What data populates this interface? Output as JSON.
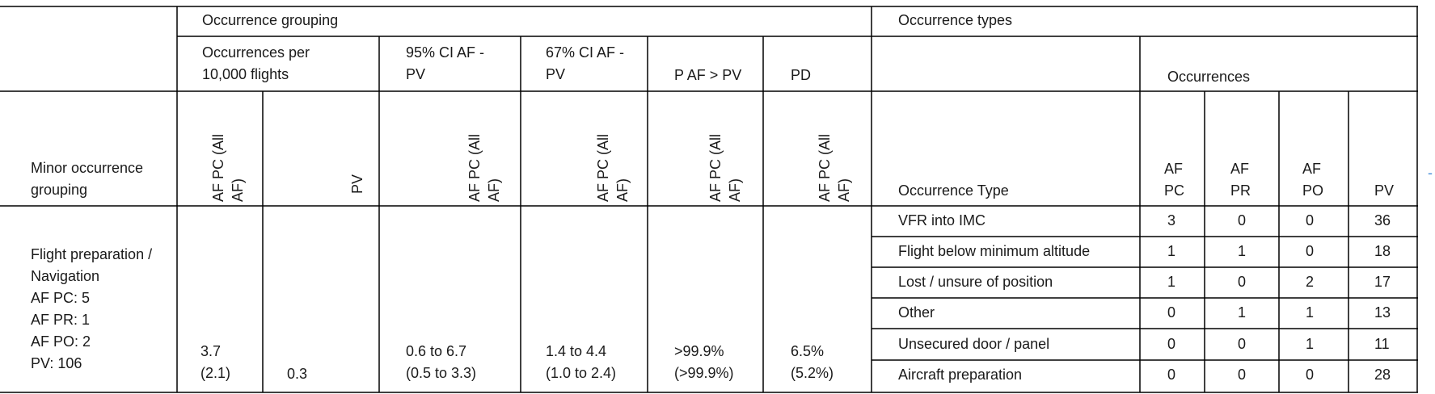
{
  "header": {
    "occurrence_grouping": "Occurrence grouping",
    "occurrence_types": "Occurrence types",
    "per_10000": "Occurrences per\n10,000 flights",
    "ci95": "95% CI AF -\nPV",
    "ci67": "67% CI AF -\nPV",
    "p_af_pv": "P AF > PV",
    "pd": "PD",
    "occurrences": "Occurrences",
    "minor_grouping": "Minor occurrence\ngrouping",
    "af_pc_all": "AF PC (All\nAF)",
    "pv": "PV",
    "occurrence_type": "Occurrence Type",
    "af_pc": "AF\nPC",
    "af_pr": "AF\nPR",
    "af_po": "AF\nPO",
    "pv_col": "PV"
  },
  "group": {
    "name": "Flight preparation /\nNavigation\nAF PC: 5\nAF PR: 1\nAF PO: 2\nPV: 106",
    "rate_af": "3.7\n(2.1)",
    "rate_pv": "0.3",
    "ci95": "0.6 to 6.7\n(0.5 to 3.3)",
    "ci67": "1.4 to 4.4\n(1.0 to 2.4)",
    "p": ">99.9%\n(>99.9%)",
    "pd": "6.5%\n(5.2%)"
  },
  "rows": [
    {
      "type": "VFR into IMC",
      "af_pc": "3",
      "af_pr": "0",
      "af_po": "0",
      "pv": "36"
    },
    {
      "type": "Flight below minimum altitude",
      "af_pc": "1",
      "af_pr": "1",
      "af_po": "0",
      "pv": "18"
    },
    {
      "type": "Lost / unsure of position",
      "af_pc": "1",
      "af_pr": "0",
      "af_po": "2",
      "pv": "17"
    },
    {
      "type": "Other",
      "af_pc": "0",
      "af_pr": "1",
      "af_po": "1",
      "pv": "13"
    },
    {
      "type": "Unsecured door / panel",
      "af_pc": "0",
      "af_pr": "0",
      "af_po": "1",
      "pv": "11"
    },
    {
      "type": "Aircraft preparation",
      "af_pc": "0",
      "af_pr": "0",
      "af_po": "0",
      "pv": "28"
    }
  ],
  "margin_mark": "-"
}
